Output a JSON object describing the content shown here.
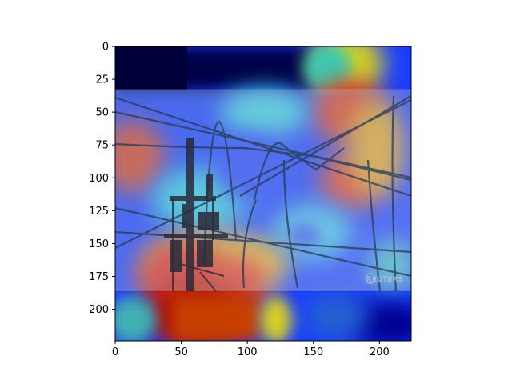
{
  "figure": {
    "kind": "heatmap overlay on photograph",
    "photo_subject": "utility pole with power lines against sky",
    "watermark": "REUTERS",
    "colormap": "jet",
    "overlay": "semi-transparent attention heatmap",
    "band_visible_y_range": [
      33,
      185
    ],
    "hotspots": [
      {
        "name": "top-right-red",
        "x": 175,
        "y": 50,
        "level": "high"
      },
      {
        "name": "right-red",
        "x": 175,
        "y": 105,
        "level": "high"
      },
      {
        "name": "left-red",
        "x": 45,
        "y": 80,
        "level": "high"
      },
      {
        "name": "bottom-center-red",
        "x": 75,
        "y": 175,
        "level": "very-high"
      },
      {
        "name": "bottom-left-red",
        "x": 40,
        "y": 170,
        "level": "high"
      },
      {
        "name": "bottom-right-yellow",
        "x": 125,
        "y": 175,
        "level": "medium"
      },
      {
        "name": "top-yellow",
        "x": 175,
        "y": 15,
        "level": "medium"
      }
    ]
  },
  "axes": {
    "x_ticks": [
      "0",
      "50",
      "100",
      "150",
      "200"
    ],
    "x_tick_values": [
      0,
      50,
      100,
      150,
      200
    ],
    "y_ticks": [
      "0",
      "25",
      "50",
      "75",
      "100",
      "125",
      "150",
      "175",
      "200"
    ],
    "y_tick_values": [
      0,
      25,
      50,
      75,
      100,
      125,
      150,
      175,
      200
    ],
    "xlim": [
      0,
      224
    ],
    "ylim": [
      224,
      0
    ]
  }
}
